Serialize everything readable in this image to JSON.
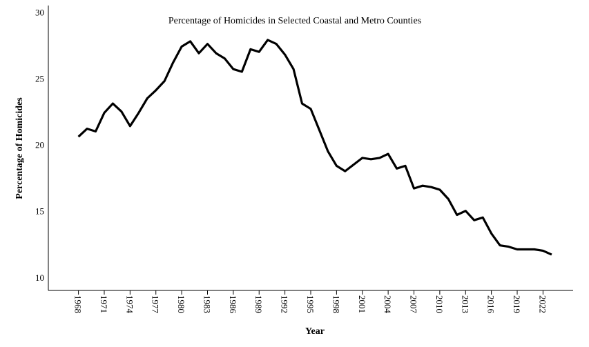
{
  "chart_data": {
    "type": "line",
    "title": "Percentage of Homicides in Selected Coastal and Metro Counties",
    "xlabel": "Year",
    "ylabel": "Percentage of Homicides",
    "xlim": [
      1964.5,
      2025.5
    ],
    "ylim": [
      9,
      30.5
    ],
    "yticks": [
      10,
      15,
      20,
      25,
      30
    ],
    "xticks": [
      1968,
      1971,
      1974,
      1977,
      1980,
      1983,
      1986,
      1989,
      1992,
      1995,
      1998,
      2001,
      2004,
      2007,
      2010,
      2013,
      2016,
      2019,
      2022
    ],
    "grid": false,
    "series": [
      {
        "name": "Percentage of Homicides",
        "color": "#000000",
        "x": [
          1968,
          1969,
          1970,
          1971,
          1972,
          1973,
          1974,
          1975,
          1976,
          1977,
          1978,
          1979,
          1980,
          1981,
          1982,
          1983,
          1984,
          1985,
          1986,
          1987,
          1988,
          1989,
          1990,
          1991,
          1992,
          1993,
          1994,
          1995,
          1996,
          1997,
          1998,
          1999,
          2000,
          2001,
          2002,
          2003,
          2004,
          2005,
          2006,
          2007,
          2008,
          2009,
          2010,
          2011,
          2012,
          2013,
          2014,
          2015,
          2016,
          2017,
          2018,
          2019,
          2020,
          2021,
          2022,
          2023
        ],
        "values": [
          20.6,
          21.2,
          21.0,
          22.4,
          23.1,
          22.5,
          21.4,
          22.4,
          23.5,
          24.1,
          24.8,
          26.2,
          27.4,
          27.8,
          26.9,
          27.6,
          26.9,
          26.5,
          25.7,
          25.5,
          27.2,
          27.0,
          27.9,
          27.6,
          26.8,
          25.7,
          23.1,
          22.7,
          21.1,
          19.5,
          18.4,
          18.0,
          18.5,
          19.0,
          18.9,
          19.0,
          19.3,
          18.2,
          18.4,
          16.7,
          16.9,
          16.8,
          16.6,
          15.9,
          14.7,
          15.0,
          14.3,
          14.5,
          13.3,
          12.4,
          12.3,
          12.1,
          12.1,
          12.1,
          12.0,
          11.7
        ]
      }
    ]
  }
}
